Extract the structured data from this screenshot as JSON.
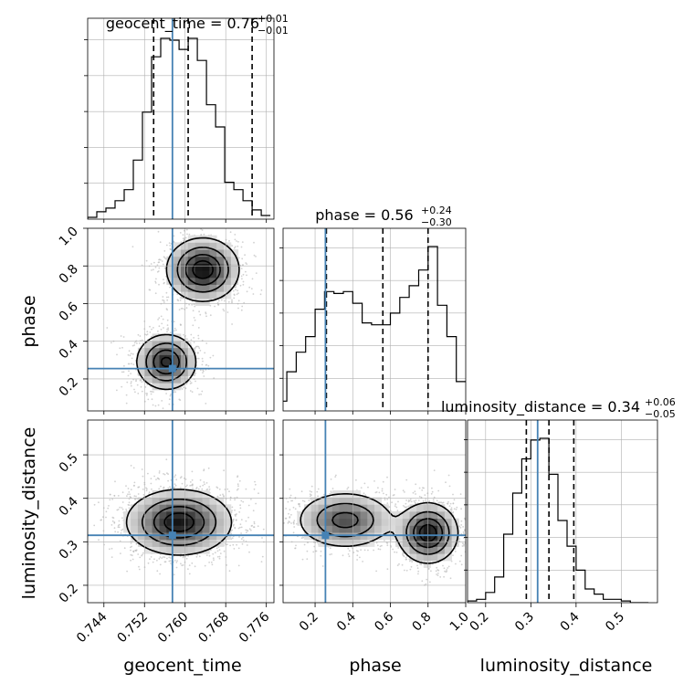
{
  "chart_data": {
    "type": "corner",
    "parameters": [
      "geocent_time",
      "phase",
      "luminosity_distance"
    ],
    "truth": {
      "geocent_time": 0.7575,
      "phase": 0.255,
      "luminosity_distance": 0.315
    },
    "ranges": {
      "geocent_time": [
        0.7408,
        0.7775
      ],
      "phase": [
        0.03,
        1.0
      ],
      "luminosity_distance": [
        0.16,
        0.58
      ]
    },
    "ticks": {
      "geocent_time": [
        "0.744",
        "0.752",
        "0.760",
        "0.768",
        "0.776"
      ],
      "phase": [
        "0.2",
        "0.4",
        "0.6",
        "0.8",
        "1.0"
      ],
      "luminosity_distance_x": [
        "0.2",
        "0.3",
        "0.4",
        "0.5"
      ],
      "luminosity_distance_y": [
        "0.2",
        "0.3",
        "0.4",
        "0.5"
      ]
    },
    "titles": [
      {
        "label": "geocent_time = 0.76",
        "sup": "+0.01",
        "sub": "−0.01"
      },
      {
        "label": "phase = 0.56",
        "sup": "+0.24",
        "sub": "−0.30"
      },
      {
        "label": "luminosity_distance = 0.34",
        "sup": "+0.06",
        "sub": "−0.05"
      }
    ],
    "axis_labels": {
      "x": [
        "geocent_time",
        "phase",
        "luminosity_distance"
      ],
      "y": [
        "phase",
        "luminosity_distance"
      ]
    },
    "histograms": {
      "geocent_time": {
        "bin_width": 0.0018,
        "edges_start": 0.7408,
        "values": [
          0.01,
          0.04,
          0.06,
          0.1,
          0.16,
          0.32,
          0.58,
          0.88,
          0.98,
          0.97,
          0.92,
          0.98,
          0.86,
          0.62,
          0.5,
          0.2,
          0.16,
          0.1,
          0.05,
          0.02
        ],
        "quantiles": [
          0.7538,
          0.7606,
          0.7732
        ],
        "truth": 0.7575
      },
      "phase": {
        "bin_width": 0.05,
        "edges_start": 0.0,
        "values": [
          0.05,
          0.2,
          0.3,
          0.38,
          0.52,
          0.61,
          0.6,
          0.61,
          0.55,
          0.45,
          0.44,
          0.44,
          0.5,
          0.58,
          0.64,
          0.72,
          0.84,
          0.54,
          0.38,
          0.15
        ],
        "quantiles": [
          0.26,
          0.56,
          0.8
        ],
        "truth": 0.255
      },
      "luminosity_distance": {
        "bin_width": 0.02,
        "edges_start": 0.16,
        "values": [
          0.01,
          0.02,
          0.06,
          0.15,
          0.4,
          0.64,
          0.84,
          0.95,
          0.96,
          0.75,
          0.48,
          0.33,
          0.19,
          0.08,
          0.05,
          0.02,
          0.02,
          0.01,
          0.0,
          0.0
        ],
        "quantiles": [
          0.29,
          0.34,
          0.395
        ],
        "truth": 0.315
      }
    },
    "contour_panels": [
      {
        "x": "geocent_time",
        "y": "phase",
        "modes": [
          {
            "x": 0.7563,
            "y": 0.29,
            "sx": 0.003,
            "sy": 0.075,
            "w": 0.5
          },
          {
            "x": 0.7635,
            "y": 0.78,
            "sx": 0.0036,
            "sy": 0.085,
            "w": 0.55
          }
        ]
      },
      {
        "x": "geocent_time",
        "y": "luminosity_distance",
        "modes": [
          {
            "x": 0.7588,
            "y": 0.345,
            "sx": 0.0052,
            "sy": 0.038,
            "w": 1.0
          }
        ]
      },
      {
        "x": "phase",
        "y": "luminosity_distance",
        "modes": [
          {
            "x": 0.36,
            "y": 0.35,
            "sx": 0.13,
            "sy": 0.033,
            "w": 0.55
          },
          {
            "x": 0.8,
            "y": 0.32,
            "sx": 0.08,
            "sy": 0.035,
            "w": 0.75
          }
        ]
      }
    ],
    "colors": {
      "truth": "#4682b4",
      "lines": "#000000",
      "grid": "#b0b0b0",
      "scatter": "#bdbdbd"
    },
    "grid": true
  }
}
